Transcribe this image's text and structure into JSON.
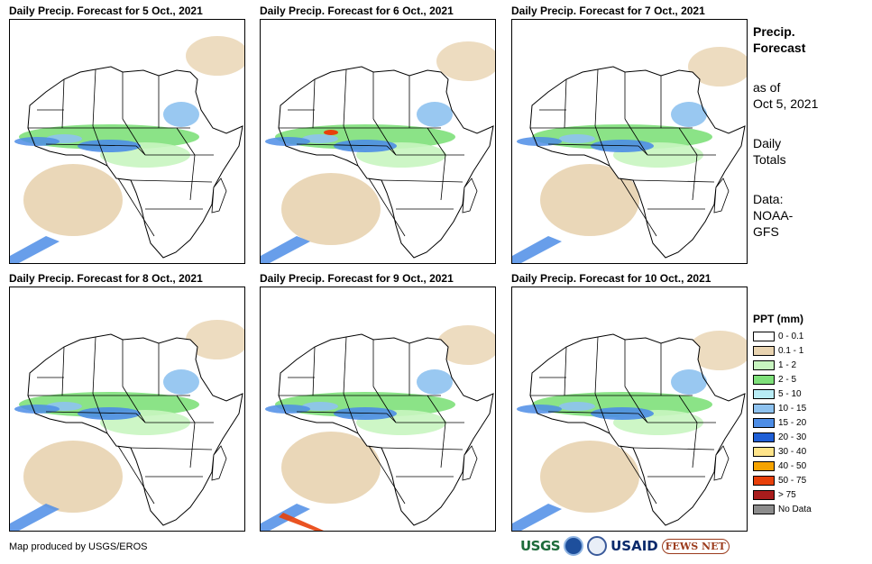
{
  "panels": [
    {
      "title": "Daily Precip. Forecast for 5 Oct., 2021"
    },
    {
      "title": "Daily Precip. Forecast for 6 Oct., 2021"
    },
    {
      "title": "Daily Precip. Forecast for 7 Oct., 2021"
    },
    {
      "title": "Daily Precip. Forecast for 8 Oct., 2021"
    },
    {
      "title": "Daily Precip. Forecast for 9 Oct., 2021"
    },
    {
      "title": "Daily Precip. Forecast for 10 Oct., 2021"
    }
  ],
  "side": {
    "title_line1": "Precip.",
    "title_line2": "Forecast",
    "asof_line1": "as of",
    "asof_line2": "Oct 5, 2021",
    "totals_line1": "Daily",
    "totals_line2": "Totals",
    "data_line1": "Data:",
    "data_line2": "NOAA-",
    "data_line3": "GFS"
  },
  "legend": {
    "title": "PPT (mm)",
    "items": [
      {
        "label": "0 - 0.1",
        "color": "#ffffff"
      },
      {
        "label": "0.1 - 1",
        "color": "#e8d3b0"
      },
      {
        "label": "1 - 2",
        "color": "#c8f5c0"
      },
      {
        "label": "2 - 5",
        "color": "#7ee07a"
      },
      {
        "label": "5 - 10",
        "color": "#b8ecf5"
      },
      {
        "label": "10 - 15",
        "color": "#8ec2ef"
      },
      {
        "label": "15 - 20",
        "color": "#4d8de6"
      },
      {
        "label": "20 - 30",
        "color": "#1f5fd6"
      },
      {
        "label": "30 - 40",
        "color": "#ffe48a"
      },
      {
        "label": "40 - 50",
        "color": "#f5a300"
      },
      {
        "label": "50 - 75",
        "color": "#e8400a"
      },
      {
        "label": "> 75",
        "color": "#a81c1c"
      },
      {
        "label": "No Data",
        "color": "#8c8c8c"
      }
    ]
  },
  "credit": "Map produced by USGS/EROS",
  "logos": {
    "usgs": "USGS",
    "usaid": "USAID",
    "fews": "FEWS NET"
  }
}
